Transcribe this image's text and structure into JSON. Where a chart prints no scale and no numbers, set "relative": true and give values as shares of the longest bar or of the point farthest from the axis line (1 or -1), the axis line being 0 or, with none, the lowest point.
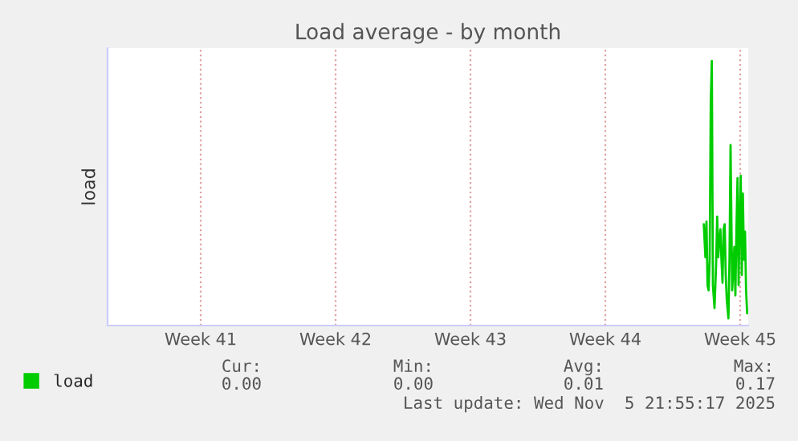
{
  "chart_data": {
    "type": "line",
    "title": "Load average - by month",
    "ylabel": "load",
    "xlim": [
      "2025-10-03T16:00",
      "2025-11-05T22:00"
    ],
    "xticks": [
      {
        "value": "2025-10-08T12:00",
        "label": "Week 41"
      },
      {
        "value": "2025-10-15T12:00",
        "label": "Week 42"
      },
      {
        "value": "2025-10-22T12:00",
        "label": "Week 43"
      },
      {
        "value": "2025-10-29T12:00",
        "label": "Week 44"
      },
      {
        "value": "2025-11-05T12:00",
        "label": "Week 45"
      }
    ],
    "relative": true,
    "series": [
      {
        "name": "load",
        "color": "#00cc00",
        "x": [
          "2025-11-03T14:40",
          "2025-11-03T16:40",
          "2025-11-03T18:00",
          "2025-11-03T19:20",
          "2025-11-03T20:40",
          "2025-11-03T22:00",
          "2025-11-03T23:20",
          "2025-11-04T00:40",
          "2025-11-04T02:00",
          "2025-11-04T04:00",
          "2025-11-04T06:00",
          "2025-11-04T07:20",
          "2025-11-04T08:40",
          "2025-11-04T10:00",
          "2025-11-04T11:20",
          "2025-11-04T12:40",
          "2025-11-04T14:00",
          "2025-11-04T15:20",
          "2025-11-04T16:40",
          "2025-11-04T18:00",
          "2025-11-04T19:20",
          "2025-11-04T21:20",
          "2025-11-04T22:40",
          "2025-11-05T00:00",
          "2025-11-05T02:00",
          "2025-11-05T03:20",
          "2025-11-05T04:40",
          "2025-11-05T06:00",
          "2025-11-05T07:20",
          "2025-11-05T08:40",
          "2025-11-05T10:00",
          "2025-11-05T11:20",
          "2025-11-05T12:40",
          "2025-11-05T14:00",
          "2025-11-05T15:20",
          "2025-11-05T16:40",
          "2025-11-05T18:00",
          "2025-11-05T19:20",
          "2025-11-05T20:40"
        ],
        "values": [
          0.383,
          0.258,
          0.393,
          0.152,
          0.133,
          0.249,
          0.846,
          1,
          0.152,
          0.066,
          0.229,
          0.412,
          0.258,
          0.326,
          0.364,
          0.249,
          0.162,
          0.364,
          0.383,
          0.191,
          0.094,
          0.027,
          0.249,
          0.682,
          0.133,
          0.21,
          0.297,
          0.114,
          0.364,
          0.557,
          0.152,
          0.403,
          0.566,
          0.191,
          0.499,
          0.249,
          0.355,
          0.133,
          0.046
        ]
      }
    ],
    "grid": "x",
    "legend": "bottom left",
    "marker": "none",
    "line_style": "solid",
    "annotations": [
      "Cur:",
      "Min:",
      "Avg:",
      "Max:",
      "0.00",
      "0.00",
      "0.01",
      "0.17",
      "Last update: Wed Nov  5 21:55:17 2025"
    ]
  }
}
